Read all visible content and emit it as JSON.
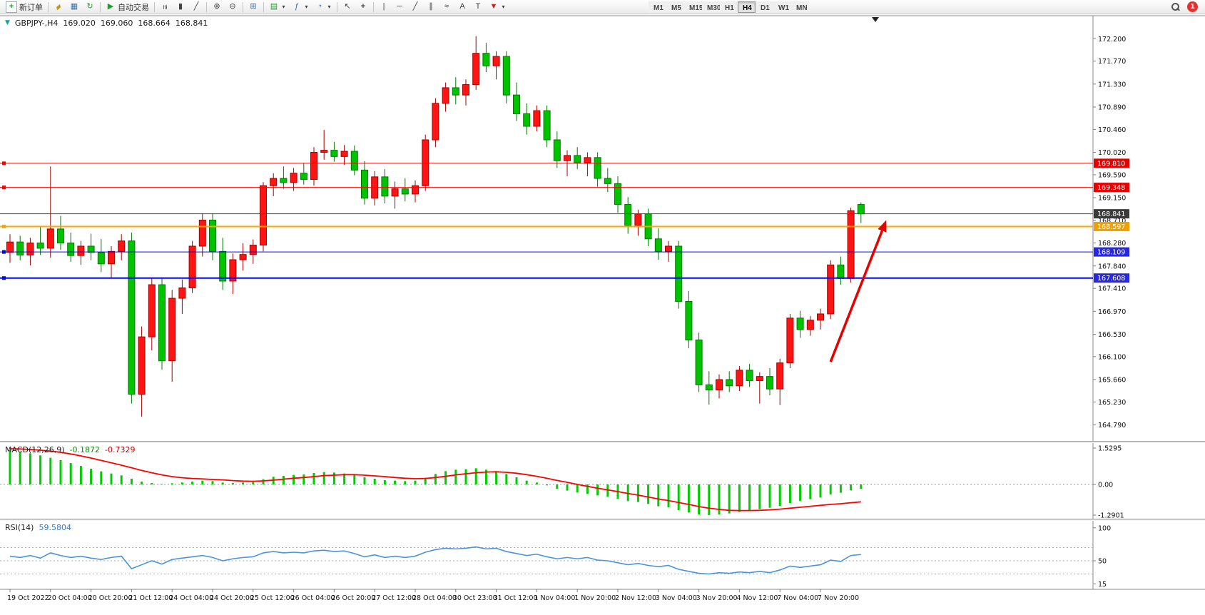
{
  "toolbar": {
    "new_order": "新订单",
    "autotrading": "自动交易",
    "notification_count": "1",
    "timeframes": [
      "M1",
      "M5",
      "M15",
      "M30",
      "H1",
      "H4",
      "D1",
      "W1",
      "MN"
    ],
    "active_timeframe": "H4",
    "icons": {
      "new_order": "+",
      "hammer": "▰",
      "chart_window": "▦",
      "refresh": "↻",
      "autotrading_play": "▶",
      "bar_chart": "≡",
      "candle_chart": "▮",
      "line_chart": "╱",
      "zoom_in": "⊕",
      "zoom_out": "⊖",
      "tile_windows": "⊞",
      "new_chart": "▤",
      "indicators": "ƒ",
      "periods": "◔",
      "cursor": "↖",
      "crosshair": "+",
      "vertical_line": "|",
      "horizontal_line": "─",
      "trendline": "╱",
      "channel": "∥",
      "fibonacci": "≈",
      "text_tool": "A",
      "label_tool": "T",
      "dropdown": "▾",
      "shift_marker": "▼",
      "symbol_marker": "▼"
    }
  },
  "chart_header": {
    "symbol_period": "GBPJPY-,H4",
    "open": "169.020",
    "high": "169.060",
    "low": "168.664",
    "close": "168.841"
  },
  "macd_label": {
    "name": "MACD(12,26,9)",
    "value_main": "-0.1872",
    "value_signal": "-0.7329"
  },
  "rsi_label": {
    "name": "RSI(14)",
    "value": "59.5804"
  },
  "chart_data": [
    {
      "type": "candlestick",
      "title": "GBPJPY- H4",
      "ylim": [
        164.62,
        172.45
      ],
      "y_ticks": [
        "172.200",
        "171.770",
        "171.330",
        "170.890",
        "170.460",
        "170.020",
        "169.590",
        "169.150",
        "168.710",
        "168.280",
        "167.840",
        "167.410",
        "166.970",
        "166.530",
        "166.100",
        "165.660",
        "165.230",
        "164.790"
      ],
      "x_labels": [
        "19 Oct 2022",
        "20 Oct 04:00",
        "20 Oct 20:00",
        "21 Oct 12:00",
        "24 Oct 04:00",
        "24 Oct 20:00",
        "25 Oct 12:00",
        "26 Oct 04:00",
        "26 Oct 20:00",
        "27 Oct 12:00",
        "28 Oct 04:00",
        "30 Oct 23:00",
        "31 Oct 12:00",
        "1 Nov 04:00",
        "1 Nov 20:00",
        "2 Nov 12:00",
        "3 Nov 04:00",
        "3 Nov 20:00",
        "4 Nov 12:00",
        "7 Nov 04:00",
        "7 Nov 20:00"
      ],
      "label_every": 4,
      "colors": {
        "up": "#ff1414",
        "up_border": "#a30000",
        "down": "#00c300",
        "down_border": "#007a00"
      },
      "ohlc": [
        [
          168.1,
          168.45,
          167.9,
          168.3
        ],
        [
          168.3,
          168.42,
          167.95,
          168.05
        ],
        [
          168.05,
          168.38,
          167.85,
          168.28
        ],
        [
          168.28,
          168.6,
          168.05,
          168.18
        ],
        [
          168.18,
          169.75,
          168.0,
          168.55
        ],
        [
          168.55,
          168.8,
          168.15,
          168.28
        ],
        [
          168.28,
          168.48,
          167.92,
          168.04
        ],
        [
          168.04,
          168.32,
          167.86,
          168.22
        ],
        [
          168.22,
          168.46,
          167.95,
          168.1
        ],
        [
          168.1,
          168.36,
          167.72,
          167.88
        ],
        [
          167.88,
          168.22,
          167.62,
          168.12
        ],
        [
          168.12,
          168.45,
          167.95,
          168.32
        ],
        [
          168.32,
          168.48,
          165.2,
          165.38
        ],
        [
          165.38,
          166.68,
          164.95,
          166.48
        ],
        [
          166.48,
          167.62,
          166.22,
          167.48
        ],
        [
          167.48,
          167.62,
          165.85,
          166.02
        ],
        [
          166.02,
          167.38,
          165.62,
          167.22
        ],
        [
          167.22,
          167.58,
          166.92,
          167.42
        ],
        [
          167.42,
          168.32,
          167.32,
          168.22
        ],
        [
          168.22,
          168.85,
          168.02,
          168.72
        ],
        [
          168.72,
          168.85,
          167.95,
          168.12
        ],
        [
          168.12,
          168.38,
          167.38,
          167.55
        ],
        [
          167.55,
          168.08,
          167.3,
          167.96
        ],
        [
          167.96,
          168.28,
          167.75,
          168.06
        ],
        [
          168.06,
          168.35,
          167.88,
          168.24
        ],
        [
          168.24,
          169.45,
          168.12,
          169.38
        ],
        [
          169.38,
          169.62,
          169.18,
          169.52
        ],
        [
          169.52,
          169.75,
          169.32,
          169.44
        ],
        [
          169.44,
          169.72,
          169.28,
          169.62
        ],
        [
          169.62,
          169.82,
          169.4,
          169.5
        ],
        [
          169.5,
          170.12,
          169.38,
          170.02
        ],
        [
          170.02,
          170.45,
          169.88,
          170.06
        ],
        [
          170.06,
          170.22,
          169.84,
          169.94
        ],
        [
          169.94,
          170.16,
          169.78,
          170.04
        ],
        [
          170.04,
          170.15,
          169.58,
          169.68
        ],
        [
          169.68,
          169.85,
          169.02,
          169.14
        ],
        [
          169.14,
          169.66,
          169.0,
          169.55
        ],
        [
          169.55,
          169.7,
          169.04,
          169.18
        ],
        [
          169.18,
          169.46,
          168.94,
          169.32
        ],
        [
          169.32,
          169.52,
          169.08,
          169.22
        ],
        [
          169.22,
          169.48,
          169.06,
          169.38
        ],
        [
          169.38,
          170.36,
          169.28,
          170.26
        ],
        [
          170.26,
          171.06,
          170.12,
          170.96
        ],
        [
          170.96,
          171.36,
          170.8,
          171.26
        ],
        [
          171.26,
          171.46,
          170.94,
          171.12
        ],
        [
          171.12,
          171.42,
          170.92,
          171.32
        ],
        [
          171.32,
          172.25,
          171.22,
          171.92
        ],
        [
          171.92,
          172.12,
          171.56,
          171.68
        ],
        [
          171.68,
          171.96,
          171.42,
          171.86
        ],
        [
          171.86,
          171.96,
          170.96,
          171.12
        ],
        [
          171.12,
          171.36,
          170.62,
          170.76
        ],
        [
          170.76,
          170.96,
          170.36,
          170.52
        ],
        [
          170.52,
          170.92,
          170.42,
          170.82
        ],
        [
          170.82,
          170.92,
          170.12,
          170.26
        ],
        [
          170.26,
          170.42,
          169.72,
          169.86
        ],
        [
          169.86,
          170.06,
          169.56,
          169.96
        ],
        [
          169.96,
          170.12,
          169.7,
          169.82
        ],
        [
          169.82,
          170.02,
          169.56,
          169.92
        ],
        [
          169.92,
          170.02,
          169.36,
          169.52
        ],
        [
          169.52,
          169.72,
          169.26,
          169.42
        ],
        [
          169.42,
          169.56,
          168.86,
          169.02
        ],
        [
          169.02,
          169.16,
          168.46,
          168.62
        ],
        [
          168.62,
          168.92,
          168.42,
          168.84
        ],
        [
          168.84,
          168.94,
          168.22,
          168.36
        ],
        [
          168.36,
          168.56,
          167.96,
          168.12
        ],
        [
          168.12,
          168.32,
          167.92,
          168.22
        ],
        [
          168.22,
          168.32,
          167.02,
          167.16
        ],
        [
          167.16,
          167.36,
          166.26,
          166.42
        ],
        [
          166.42,
          166.56,
          165.42,
          165.56
        ],
        [
          165.56,
          165.82,
          165.18,
          165.46
        ],
        [
          165.46,
          165.76,
          165.3,
          165.66
        ],
        [
          165.66,
          165.82,
          165.42,
          165.54
        ],
        [
          165.54,
          165.92,
          165.44,
          165.84
        ],
        [
          165.84,
          165.96,
          165.52,
          165.64
        ],
        [
          165.64,
          165.8,
          165.2,
          165.72
        ],
        [
          165.72,
          165.88,
          165.36,
          165.48
        ],
        [
          165.48,
          166.06,
          165.17,
          165.98
        ],
        [
          165.98,
          166.92,
          165.88,
          166.84
        ],
        [
          166.84,
          166.98,
          166.46,
          166.62
        ],
        [
          166.62,
          166.88,
          166.5,
          166.8
        ],
        [
          166.8,
          167.02,
          166.62,
          166.92
        ],
        [
          166.92,
          167.95,
          166.82,
          167.86
        ],
        [
          167.86,
          168.02,
          167.48,
          167.6
        ],
        [
          167.6,
          168.96,
          167.52,
          168.9
        ],
        [
          169.02,
          169.06,
          168.664,
          168.841
        ]
      ],
      "hlines": [
        {
          "price": 169.81,
          "color": "#ff0000",
          "box": "#e60000",
          "label": "169.810",
          "width": 1,
          "handles": true
        },
        {
          "price": 169.348,
          "color": "#ff0000",
          "box": "#e60000",
          "label": "169.348",
          "width": 1,
          "handles": true
        },
        {
          "price": 168.841,
          "color": "#4a4a4a",
          "box": "#3a3a3a",
          "label": "168.841",
          "width": 1,
          "handles": false
        },
        {
          "price": 168.597,
          "color": "#ffa500",
          "box": "#f0a000",
          "label": "168.597",
          "width": 2,
          "handles": true
        },
        {
          "price": 168.109,
          "color": "#0000ff",
          "box": "#2828e0",
          "label": "168.109",
          "width": 1,
          "handles": true
        },
        {
          "price": 167.608,
          "color": "#0000ff",
          "box": "#2828e0",
          "label": "167.608",
          "width": 2,
          "handles": true
        }
      ],
      "annotation": {
        "type": "arrow",
        "from_bar": 81,
        "from_price": 166.0,
        "to_bar": 86.5,
        "to_price": 168.72,
        "color": "#e60000"
      }
    },
    {
      "type": "bar",
      "name": "MACD(12,26,9)",
      "ylim": [
        -1.2901,
        1.5295
      ],
      "y_ticks": [
        "1.5295",
        "0.00",
        "-1.2901"
      ],
      "colors": {
        "histogram": "#00cc00",
        "signal": "#ff0000",
        "zero_line": "#999999"
      },
      "values": [
        1.45,
        1.38,
        1.3,
        1.22,
        1.12,
        1.02,
        0.9,
        0.78,
        0.66,
        0.55,
        0.46,
        0.38,
        0.24,
        0.12,
        0.06,
        0.02,
        0.05,
        0.08,
        0.12,
        0.16,
        0.14,
        0.08,
        0.06,
        0.08,
        0.1,
        0.22,
        0.32,
        0.36,
        0.4,
        0.42,
        0.48,
        0.52,
        0.5,
        0.46,
        0.4,
        0.3,
        0.24,
        0.18,
        0.16,
        0.14,
        0.16,
        0.28,
        0.44,
        0.56,
        0.62,
        0.64,
        0.68,
        0.62,
        0.56,
        0.44,
        0.3,
        0.16,
        0.08,
        -0.04,
        -0.18,
        -0.26,
        -0.34,
        -0.4,
        -0.46,
        -0.52,
        -0.6,
        -0.7,
        -0.74,
        -0.82,
        -0.92,
        -0.96,
        -1.08,
        -1.18,
        -1.26,
        -1.29,
        -1.26,
        -1.22,
        -1.16,
        -1.1,
        -1.04,
        -0.98,
        -0.9,
        -0.78,
        -0.7,
        -0.62,
        -0.55,
        -0.42,
        -0.35,
        -0.25,
        -0.1872
      ],
      "signal": [
        1.5,
        1.49,
        1.47,
        1.44,
        1.4,
        1.35,
        1.28,
        1.2,
        1.11,
        1.01,
        0.91,
        0.81,
        0.7,
        0.59,
        0.49,
        0.4,
        0.33,
        0.28,
        0.25,
        0.23,
        0.21,
        0.19,
        0.16,
        0.14,
        0.13,
        0.15,
        0.18,
        0.22,
        0.26,
        0.29,
        0.33,
        0.37,
        0.39,
        0.41,
        0.41,
        0.39,
        0.36,
        0.33,
        0.29,
        0.26,
        0.24,
        0.25,
        0.29,
        0.34,
        0.4,
        0.45,
        0.49,
        0.52,
        0.53,
        0.51,
        0.47,
        0.41,
        0.34,
        0.26,
        0.17,
        0.09,
        0.0,
        -0.08,
        -0.16,
        -0.23,
        -0.3,
        -0.38,
        -0.45,
        -0.53,
        -0.61,
        -0.68,
        -0.76,
        -0.84,
        -0.93,
        -1.0,
        -1.05,
        -1.09,
        -1.1,
        -1.1,
        -1.09,
        -1.07,
        -1.04,
        -1.0,
        -0.96,
        -0.92,
        -0.88,
        -0.84,
        -0.81,
        -0.77,
        -0.7329
      ]
    },
    {
      "type": "line",
      "name": "RSI(14)",
      "ylim": [
        10,
        103
      ],
      "y_ticks": [
        "100",
        "50",
        "15"
      ],
      "levels": [
        70,
        50,
        30
      ],
      "colors": {
        "line": "#4a94d8",
        "level_line": "#aaaaaa"
      },
      "values": [
        57,
        55,
        58,
        54,
        62,
        58,
        55,
        57,
        54,
        52,
        55,
        57,
        38,
        44,
        50,
        45,
        52,
        54,
        56,
        58,
        55,
        50,
        53,
        55,
        56,
        62,
        64,
        62,
        63,
        62,
        65,
        66,
        64,
        65,
        61,
        56,
        59,
        55,
        57,
        55,
        57,
        63,
        67,
        69,
        68,
        69,
        71,
        68,
        69,
        64,
        61,
        58,
        60,
        56,
        53,
        55,
        53,
        55,
        51,
        50,
        47,
        44,
        46,
        43,
        41,
        43,
        37,
        34,
        31,
        30,
        32,
        31,
        33,
        32,
        34,
        32,
        36,
        42,
        40,
        42,
        44,
        51,
        49,
        58,
        59.58
      ]
    }
  ]
}
